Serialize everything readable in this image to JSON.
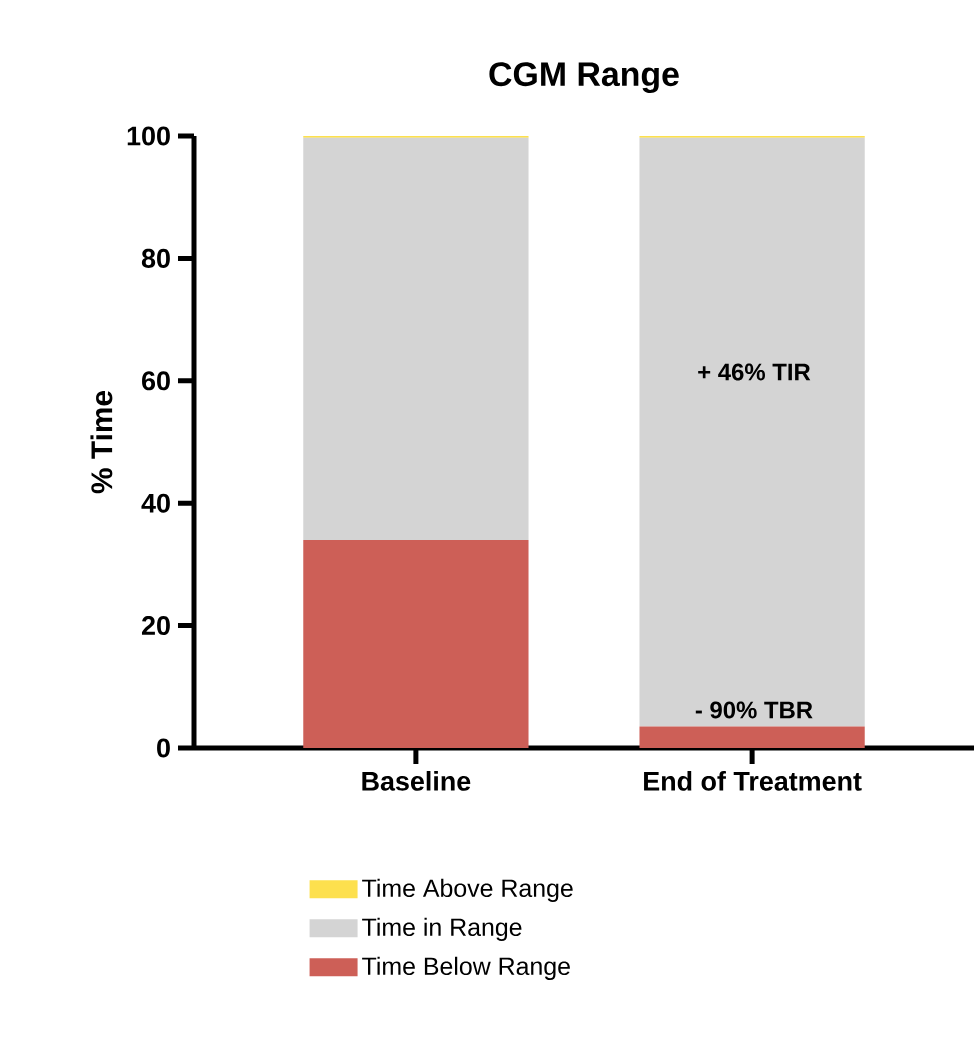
{
  "chart_data": {
    "type": "bar",
    "title": "CGM Range",
    "ylabel": "% Time",
    "categories": [
      "Baseline",
      "End of Treatment"
    ],
    "stacked": true,
    "series": [
      {
        "name": "Time Below Range",
        "color": "#cd5f57",
        "values": [
          34,
          3.5
        ]
      },
      {
        "name": "Time in Range",
        "color": "#d4d4d4",
        "values": [
          65.7,
          96.2
        ]
      },
      {
        "name": "Time Above Range",
        "color": "#fde04e",
        "values": [
          0.3,
          0.3
        ]
      }
    ],
    "annotations": [
      "+ 46% TIR",
      "- 90% TBR"
    ],
    "ylim": [
      0,
      100
    ],
    "yticks": [
      0,
      20,
      40,
      60,
      80,
      100
    ],
    "grid": false,
    "legend": "bottom"
  }
}
